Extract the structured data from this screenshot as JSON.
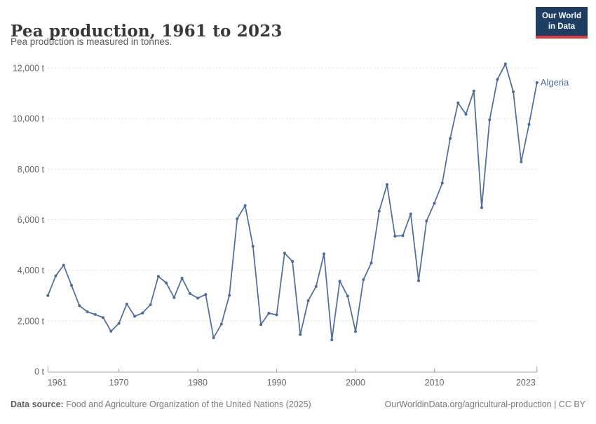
{
  "header": {
    "title": "Pea production, 1961 to 2023",
    "subtitle": "Pea production is measured in tonnes.",
    "logo_line1": "Our World",
    "logo_line2": "in Data",
    "logo_bg": "#1d3d63",
    "logo_accent": "#e0393e"
  },
  "chart_data": {
    "type": "line",
    "title": "Pea production, 1961 to 2023",
    "ylabel": "",
    "xlabel": "",
    "unit": "t",
    "grid": "horizontal-dashed",
    "legend_position": "end-of-line-label",
    "xlim": [
      1961,
      2023
    ],
    "ylim": [
      0,
      12000
    ],
    "x_ticks": [
      1961,
      1970,
      1980,
      1990,
      2000,
      2010,
      2023
    ],
    "y_ticks": [
      0,
      2000,
      4000,
      6000,
      8000,
      10000,
      12000
    ],
    "y_tick_suffix": " t",
    "series": [
      {
        "name": "Algeria",
        "color": "#4C6A9C",
        "x_start": 1961,
        "x_step": 1,
        "values": [
          3000,
          3780,
          4200,
          3400,
          2600,
          2360,
          2250,
          2130,
          1590,
          1900,
          2670,
          2180,
          2310,
          2640,
          3760,
          3500,
          2920,
          3690,
          3080,
          2900,
          3040,
          1330,
          1870,
          3010,
          6040,
          6560,
          4950,
          1850,
          2300,
          2240,
          4680,
          4350,
          1460,
          2800,
          3360,
          4650,
          1250,
          3570,
          2980,
          1580,
          3630,
          4290,
          6340,
          7390,
          5350,
          5370,
          6230,
          3590,
          5950,
          6650,
          7450,
          9210,
          10620,
          10170,
          11090,
          6480,
          9950,
          11550,
          12160,
          11060,
          8290,
          9770,
          11420
        ]
      }
    ],
    "colors": {
      "gridline": "#dcdcdc",
      "axis": "#a5a5a5",
      "tick_label": "#666666"
    }
  },
  "footer": {
    "source_label": "Data source:",
    "source_text": " Food and Agriculture Organization of the United Nations (2025)",
    "rights": "OurWorldinData.org/agricultural-production | CC BY"
  }
}
